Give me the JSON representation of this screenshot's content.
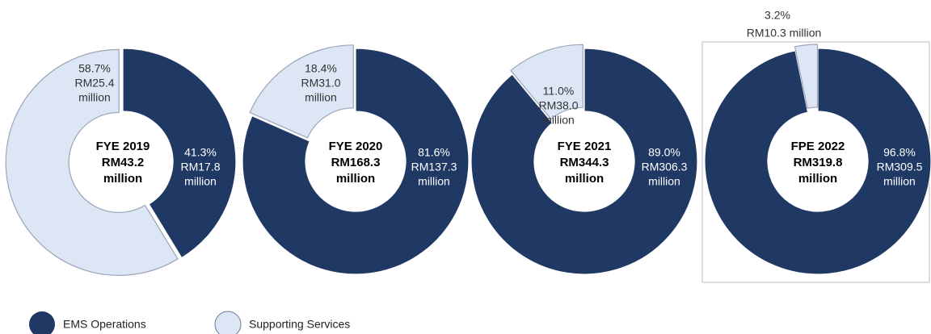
{
  "legend": [
    {
      "name": "EMS Operations",
      "color": "#1f3864"
    },
    {
      "name": "Supporting Services",
      "color": "#dce6f4"
    }
  ],
  "chart_data": [
    {
      "type": "donut",
      "title": "FYE 2019",
      "center_lines": [
        "RM43.2",
        "million"
      ],
      "values": [
        41.3,
        58.7
      ],
      "value_labels": [
        "41.3%",
        "58.7%"
      ],
      "amount_labels": [
        [
          "RM17.8",
          "million"
        ],
        [
          "RM25.4",
          "million"
        ]
      ]
    },
    {
      "type": "donut",
      "title": "FYE 2020",
      "center_lines": [
        "RM168.3",
        "million"
      ],
      "values": [
        81.6,
        18.4
      ],
      "value_labels": [
        "81.6%",
        "18.4%"
      ],
      "amount_labels": [
        [
          "RM137.3",
          "million"
        ],
        [
          "RM31.0",
          "million"
        ]
      ]
    },
    {
      "type": "donut",
      "title": "FYE 2021",
      "center_lines": [
        "RM344.3",
        "million"
      ],
      "values": [
        89.0,
        11.0
      ],
      "value_labels": [
        "89.0%",
        "11.0%"
      ],
      "amount_labels": [
        [
          "RM306.3",
          "million"
        ],
        [
          "RM38.0",
          "million"
        ]
      ]
    },
    {
      "type": "donut",
      "title": "FPE 2022",
      "center_lines": [
        "RM319.8",
        "million"
      ],
      "values": [
        96.8,
        3.2
      ],
      "value_labels": [
        "96.8%",
        "3.2%"
      ],
      "amount_labels": [
        [
          "RM309.5",
          "million"
        ],
        [
          "RM10.3 million"
        ]
      ]
    }
  ]
}
